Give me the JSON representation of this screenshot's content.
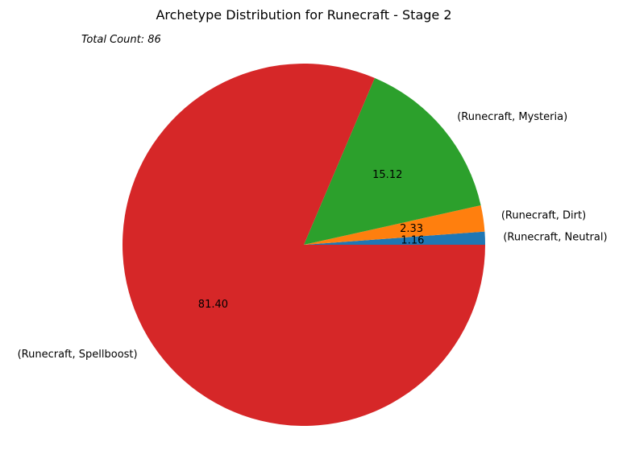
{
  "chart_data": {
    "type": "pie",
    "title": "Archetype Distribution for Runecraft - Stage 2",
    "annotation": "Total Count: 86",
    "slices": [
      {
        "label": "(Runecraft, Neutral)",
        "value": 1.16,
        "pct_label": "1.16",
        "color": "#1f77b4"
      },
      {
        "label": "(Runecraft, Dirt)",
        "value": 2.33,
        "pct_label": "2.33",
        "color": "#ff7f0e"
      },
      {
        "label": "(Runecraft, Mysteria)",
        "value": 15.12,
        "pct_label": "15.12",
        "color": "#2ca02c"
      },
      {
        "label": "(Runecraft, Spellboost)",
        "value": 81.4,
        "pct_label": "81.40",
        "color": "#d62728"
      }
    ]
  }
}
